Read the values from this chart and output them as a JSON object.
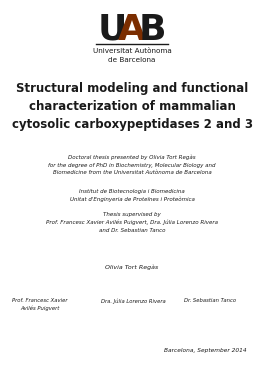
{
  "background_color": "#ffffff",
  "logo_subtext": "Universitat Autònoma\nde Barcelona",
  "title": "Structural modeling and functional\ncharacterization of mammalian\ncytosolic carboxypeptidases 2 and 3",
  "doctoral_text": "Doctoral thesis presented by Olivia Tort Regàs\nfor the degree of PhD in Biochemistry, Molecular Biology and\nBiomedicine from the Universitat Autònoma de Barcelona",
  "institute_text": "Institut de Biotecnologia i Biomedicina\nUnitat d'Enginyeria de Proteïnes i Proteòmica",
  "thesis_supervised": "Thesis supervised by\nProf. Francesc Xavier Avilés Puigvert, Dra. Júlia Lorenzo Rivera\nand Dr. Sebastian Tanco",
  "author_name": "Olivia Tort Regàs",
  "supervisors_left": "Prof. Francesc Xavier\nAvilés Puigvert",
  "supervisors_mid": "Dra. Júlia Lorenzo Rivera",
  "supervisors_right": "Dr. Sebastian Tanco",
  "location_date": "Barcelona, September 2014",
  "uab_dark": "#1a1a1a",
  "uab_brown": "#7B2D00",
  "text_color": "#1a1a1a"
}
